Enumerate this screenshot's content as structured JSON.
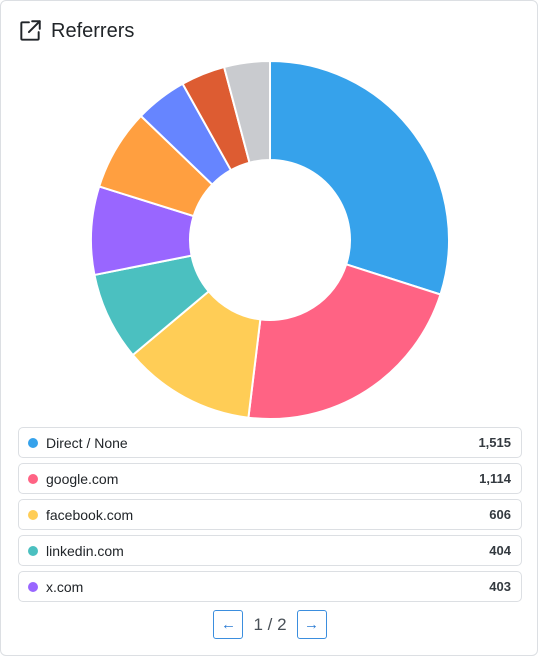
{
  "header": {
    "title": "Referrers",
    "icon": "external-link-icon"
  },
  "chart_data": {
    "type": "pie",
    "style": "donut",
    "categories": [
      "Direct / None",
      "google.com",
      "facebook.com",
      "linkedin.com",
      "x.com",
      "",
      "",
      "",
      ""
    ],
    "values": [
      1515,
      1114,
      606,
      404,
      403,
      372,
      238,
      202,
      209
    ],
    "colors": [
      "#36a2eb",
      "#ff6384",
      "#ffcd56",
      "#4bc0c0",
      "#9966ff",
      "#ff9f40",
      "#6685ff",
      "#dd5c32",
      "#c9cbcf"
    ]
  },
  "referrers": [
    {
      "label": "Direct / None",
      "count": "1,515",
      "color": "#36a2eb"
    },
    {
      "label": "google.com",
      "count": "1,114",
      "color": "#ff6384"
    },
    {
      "label": "facebook.com",
      "count": "606",
      "color": "#ffcd56"
    },
    {
      "label": "linkedin.com",
      "count": "404",
      "color": "#4bc0c0"
    },
    {
      "label": "x.com",
      "count": "403",
      "color": "#9966ff"
    }
  ],
  "pagination": {
    "prev_label": "←",
    "next_label": "→",
    "page_text": "1 / 2"
  }
}
